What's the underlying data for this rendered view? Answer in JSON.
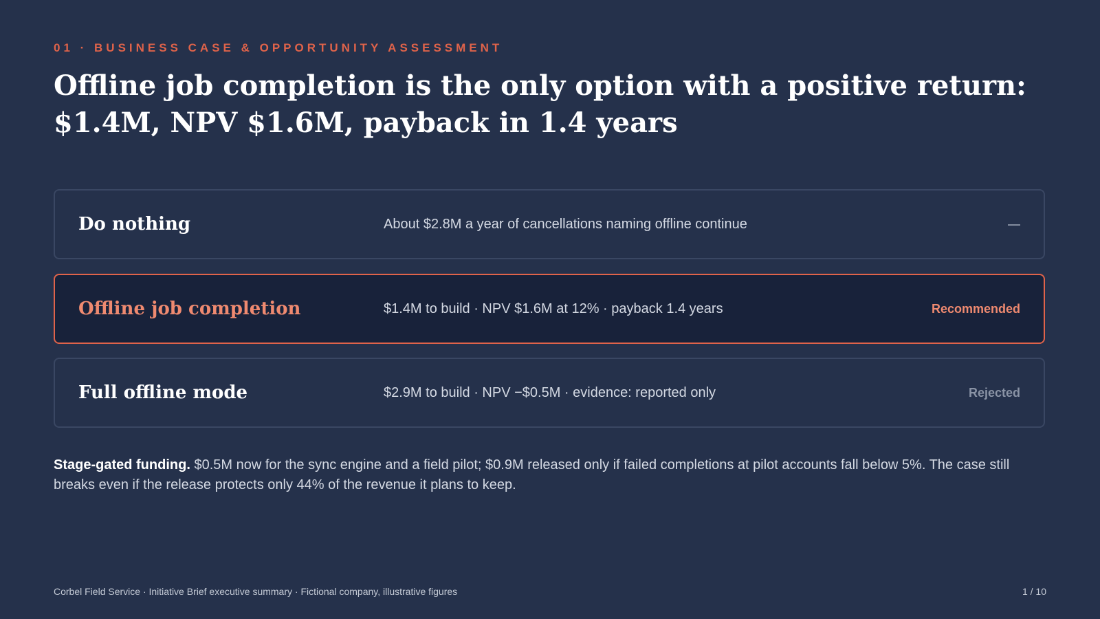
{
  "header": {
    "eyebrow": "01 · BUSINESS CASE & OPPORTUNITY ASSESSMENT",
    "title": "Offline job completion is the only option with a positive return: $1.4M, NPV $1.6M, payback in 1.4 years"
  },
  "options": [
    {
      "name": "Do nothing",
      "detail": "About $2.8M a year of cancellations naming offline continue",
      "status": "—"
    },
    {
      "name": "Offline job completion",
      "detail": "$1.4M to build · NPV $1.6M at 12% · payback 1.4 years",
      "status": "Recommended"
    },
    {
      "name": "Full offline mode",
      "detail": "$2.9M to build · NPV −$0.5M · evidence: reported only",
      "status": "Rejected"
    }
  ],
  "note": {
    "lead": "Stage-gated funding.",
    "text": "$0.5M now for the sync engine and a field pilot; $0.9M released only if failed completions at pilot accounts fall below 5%. The case still breaks even if the release protects only 44% of the revenue it plans to keep."
  },
  "footer": {
    "source": "Corbel Field Service · Initiative Brief executive summary · Fictional company, illustrative figures",
    "page": "1 / 10"
  }
}
